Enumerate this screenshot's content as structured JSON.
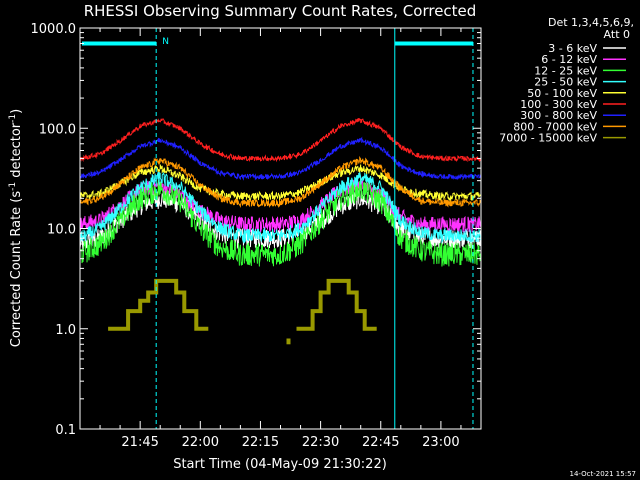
{
  "chart_data": {
    "type": "line",
    "title": "RHESSI Observing Summary Count Rates, Corrected",
    "xlabel": "Start Time (04-May-09 21:30:22)",
    "ylabel_main": "Corrected Count Rate (s",
    "ylabel_sup1": "-1",
    "ylabel_mid": " detector",
    "ylabel_sup2": "-1",
    "ylabel_end": ")",
    "yscale": "log",
    "ylim": [
      0.1,
      1000
    ],
    "xlim_min": [
      0,
      100
    ],
    "x_ticks": [
      {
        "min": 15,
        "label": "21:45"
      },
      {
        "min": 30,
        "label": "22:00"
      },
      {
        "min": 45,
        "label": "22:15"
      },
      {
        "min": 60,
        "label": "22:30"
      },
      {
        "min": 75,
        "label": "22:45"
      },
      {
        "min": 90,
        "label": "23:00"
      }
    ],
    "y_ticks": [
      {
        "value": 1000,
        "label": "1000.0"
      },
      {
        "value": 100,
        "label": "100.0"
      },
      {
        "value": 10,
        "label": "10.0"
      },
      {
        "value": 1,
        "label": "1.0"
      },
      {
        "value": 0.1,
        "label": "0.1"
      }
    ],
    "legend_header": [
      "Det 1,3,4,5,6,9,",
      "Att 0"
    ],
    "legend_position": "right",
    "night_marks": [
      0,
      78.5
    ],
    "night_bar_level": 700,
    "saa_label": "N",
    "dashed_marks": [
      19,
      98
    ],
    "series": [
      {
        "name": "3 - 6 keV",
        "color": "#ffffff",
        "x": [
          0,
          5,
          10,
          15,
          20,
          25,
          30,
          35,
          40,
          45,
          50,
          55,
          60,
          65,
          70,
          75,
          80,
          85,
          90,
          95,
          100
        ],
        "y": [
          7,
          8,
          12,
          17,
          20,
          18,
          12,
          9,
          8,
          8,
          8,
          9,
          12,
          17,
          20,
          17,
          10,
          8,
          8,
          8,
          8
        ]
      },
      {
        "name": "6 - 12 keV",
        "color": "#ff33ff",
        "x": [
          0,
          5,
          10,
          15,
          20,
          25,
          30,
          35,
          40,
          45,
          50,
          55,
          60,
          65,
          70,
          75,
          80,
          85,
          90,
          95,
          100
        ],
        "y": [
          11,
          12,
          17,
          24,
          27,
          22,
          15,
          12,
          11,
          11,
          11,
          12,
          17,
          24,
          27,
          22,
          13,
          11,
          11,
          11,
          11
        ]
      },
      {
        "name": "12 - 25 keV",
        "color": "#33ff33",
        "x": [
          0,
          5,
          10,
          15,
          20,
          25,
          30,
          35,
          40,
          45,
          50,
          55,
          60,
          65,
          70,
          75,
          80,
          85,
          90,
          95,
          100
        ],
        "y": [
          5.5,
          7,
          12,
          20,
          25,
          19,
          10,
          6.5,
          5.5,
          5.5,
          5.5,
          7,
          12,
          20,
          25,
          19,
          8,
          6,
          5.5,
          5.5,
          5.5
        ]
      },
      {
        "name": "25 - 50 keV",
        "color": "#33ffff",
        "x": [
          0,
          5,
          10,
          15,
          20,
          25,
          30,
          35,
          40,
          45,
          50,
          55,
          60,
          65,
          70,
          75,
          80,
          85,
          90,
          95,
          100
        ],
        "y": [
          8,
          10,
          16,
          26,
          32,
          26,
          15,
          10,
          8.5,
          8.5,
          8.5,
          10,
          16,
          26,
          32,
          26,
          12,
          9,
          8.5,
          8.5,
          8.5
        ]
      },
      {
        "name": "50 - 100 keV",
        "color": "#ffff33",
        "x": [
          0,
          5,
          10,
          15,
          20,
          25,
          30,
          35,
          40,
          45,
          50,
          55,
          60,
          65,
          70,
          75,
          80,
          85,
          90,
          95,
          100
        ],
        "y": [
          21,
          22,
          28,
          36,
          40,
          33,
          25,
          22,
          21,
          21,
          21,
          23,
          29,
          36,
          40,
          34,
          25,
          22,
          21,
          21,
          21
        ]
      },
      {
        "name": "100 - 300 keV",
        "color": "#ff2020",
        "x": [
          0,
          5,
          10,
          15,
          20,
          25,
          30,
          35,
          40,
          45,
          50,
          55,
          60,
          65,
          70,
          75,
          80,
          85,
          90,
          95,
          100
        ],
        "y": [
          50,
          55,
          75,
          105,
          120,
          100,
          70,
          55,
          50,
          50,
          50,
          55,
          75,
          105,
          120,
          100,
          65,
          52,
          50,
          50,
          50
        ]
      },
      {
        "name": "300 - 800 keV",
        "color": "#2020ff",
        "x": [
          0,
          5,
          10,
          15,
          20,
          25,
          30,
          35,
          40,
          45,
          50,
          55,
          60,
          65,
          70,
          75,
          80,
          85,
          90,
          95,
          100
        ],
        "y": [
          33,
          36,
          48,
          66,
          76,
          64,
          45,
          36,
          33,
          33,
          33,
          36,
          48,
          66,
          76,
          64,
          42,
          35,
          33,
          33,
          33
        ]
      },
      {
        "name": "800 - 7000 keV",
        "color": "#ff9900",
        "x": [
          0,
          5,
          10,
          15,
          20,
          25,
          30,
          35,
          40,
          45,
          50,
          55,
          60,
          65,
          70,
          75,
          80,
          85,
          90,
          95,
          100
        ],
        "y": [
          18,
          20,
          28,
          40,
          48,
          40,
          27,
          20,
          18,
          18,
          18,
          20,
          28,
          40,
          48,
          40,
          25,
          19,
          18,
          18,
          18
        ]
      },
      {
        "name": "7000 - 15000 keV",
        "color": "#999900",
        "x": [
          0,
          5,
          10,
          15,
          20,
          25,
          30,
          35,
          40,
          45,
          50,
          55,
          60,
          65,
          70,
          75,
          80,
          85,
          90,
          95,
          100
        ],
        "y": [
          null,
          null,
          null,
          null,
          null,
          null,
          null,
          null,
          null,
          null,
          null,
          null,
          null,
          null,
          null,
          null,
          null,
          null,
          null,
          null,
          null
        ],
        "steps": [
          [
            [
              7,
              1
            ],
            [
              12,
              1
            ],
            [
              12,
              1.5
            ],
            [
              15,
              1.5
            ],
            [
              15,
              1.9
            ],
            [
              17,
              1.9
            ],
            [
              17,
              2.3
            ],
            [
              19,
              2.3
            ],
            [
              19,
              3
            ],
            [
              24,
              3
            ],
            [
              24,
              2.3
            ],
            [
              26,
              2.3
            ],
            [
              26,
              1.5
            ],
            [
              29,
              1.5
            ],
            [
              29,
              1.0
            ],
            [
              32,
              1.0
            ]
          ],
          [
            [
              54,
              1
            ],
            [
              58,
              1
            ],
            [
              58,
              1.5
            ],
            [
              60,
              1.5
            ],
            [
              60,
              2.3
            ],
            [
              62,
              2.3
            ],
            [
              62,
              3
            ],
            [
              67,
              3
            ],
            [
              67,
              2.3
            ],
            [
              69,
              2.3
            ],
            [
              69,
              1.5
            ],
            [
              71,
              1.5
            ],
            [
              71,
              1.0
            ],
            [
              74,
              1.0
            ]
          ],
          [
            [
              52,
              0.8
            ],
            [
              52,
              0.7
            ]
          ]
        ]
      }
    ]
  },
  "footer_date": "14-Oct-2021 15:57"
}
